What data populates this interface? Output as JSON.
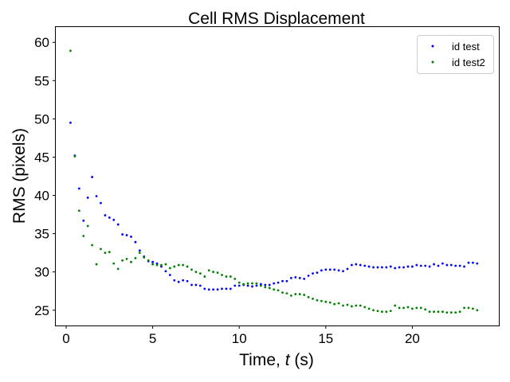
{
  "chart_data": {
    "type": "scatter",
    "title": "Cell RMS Displacement",
    "xlabel": {
      "prefix": "Time, ",
      "var": "t",
      "suffix": " (s)"
    },
    "ylabel": "RMS (pixels)",
    "xlim": [
      -0.6,
      25.0
    ],
    "ylim": [
      23.0,
      62.0
    ],
    "xticks": [
      0,
      5,
      10,
      15,
      20
    ],
    "yticks": [
      25,
      30,
      35,
      40,
      45,
      50,
      55,
      60
    ],
    "grid": false,
    "legend_position": "top-right",
    "series": [
      {
        "name": "id test",
        "color": "#0000ff",
        "points": [
          [
            0.25,
            49.5
          ],
          [
            0.5,
            45.2
          ],
          [
            0.75,
            40.9
          ],
          [
            1.0,
            36.7
          ],
          [
            1.25,
            39.7
          ],
          [
            1.5,
            42.4
          ],
          [
            1.75,
            39.9
          ],
          [
            2.0,
            39.0
          ],
          [
            2.25,
            37.4
          ],
          [
            2.5,
            37.1
          ],
          [
            2.75,
            36.8
          ],
          [
            3.0,
            36.2
          ],
          [
            3.25,
            34.9
          ],
          [
            3.5,
            34.8
          ],
          [
            3.75,
            34.6
          ],
          [
            4.0,
            33.9
          ],
          [
            4.25,
            32.8
          ],
          [
            4.5,
            32.0
          ],
          [
            4.75,
            31.4
          ],
          [
            5.0,
            31.3
          ],
          [
            5.25,
            31.1
          ],
          [
            5.5,
            30.7
          ],
          [
            5.75,
            30.1
          ],
          [
            6.0,
            29.6
          ],
          [
            6.25,
            28.9
          ],
          [
            6.5,
            28.7
          ],
          [
            6.75,
            28.9
          ],
          [
            7.0,
            28.8
          ],
          [
            7.25,
            28.3
          ],
          [
            7.5,
            28.3
          ],
          [
            7.75,
            28.2
          ],
          [
            8.0,
            27.8
          ],
          [
            8.25,
            27.7
          ],
          [
            8.5,
            27.7
          ],
          [
            8.75,
            27.7
          ],
          [
            9.0,
            27.8
          ],
          [
            9.25,
            27.8
          ],
          [
            9.5,
            27.8
          ],
          [
            9.75,
            28.2
          ],
          [
            10.0,
            28.2
          ],
          [
            10.25,
            28.3
          ],
          [
            10.5,
            28.2
          ],
          [
            10.75,
            28.1
          ],
          [
            11.0,
            28.2
          ],
          [
            11.25,
            28.4
          ],
          [
            11.5,
            28.3
          ],
          [
            11.75,
            28.3
          ],
          [
            12.0,
            28.5
          ],
          [
            12.25,
            28.6
          ],
          [
            12.5,
            28.8
          ],
          [
            12.75,
            28.8
          ],
          [
            13.0,
            29.2
          ],
          [
            13.25,
            29.3
          ],
          [
            13.5,
            29.2
          ],
          [
            13.75,
            29.1
          ],
          [
            14.0,
            29.5
          ],
          [
            14.25,
            29.8
          ],
          [
            14.5,
            29.9
          ],
          [
            14.75,
            30.2
          ],
          [
            15.0,
            30.3
          ],
          [
            15.25,
            30.3
          ],
          [
            15.5,
            30.3
          ],
          [
            15.75,
            30.2
          ],
          [
            16.0,
            30.1
          ],
          [
            16.25,
            30.4
          ],
          [
            16.5,
            30.9
          ],
          [
            16.75,
            31.0
          ],
          [
            17.0,
            30.9
          ],
          [
            17.25,
            30.8
          ],
          [
            17.5,
            30.7
          ],
          [
            17.75,
            30.6
          ],
          [
            18.0,
            30.6
          ],
          [
            18.25,
            30.6
          ],
          [
            18.5,
            30.6
          ],
          [
            18.75,
            30.7
          ],
          [
            19.0,
            30.5
          ],
          [
            19.25,
            30.6
          ],
          [
            19.5,
            30.6
          ],
          [
            19.75,
            30.7
          ],
          [
            20.0,
            30.7
          ],
          [
            20.25,
            30.9
          ],
          [
            20.5,
            30.8
          ],
          [
            20.75,
            30.8
          ],
          [
            21.0,
            30.7
          ],
          [
            21.25,
            31.0
          ],
          [
            21.5,
            30.8
          ],
          [
            21.75,
            31.1
          ],
          [
            22.0,
            30.9
          ],
          [
            22.25,
            30.9
          ],
          [
            22.5,
            30.8
          ],
          [
            22.75,
            30.8
          ],
          [
            23.0,
            30.7
          ],
          [
            23.25,
            31.2
          ],
          [
            23.5,
            31.2
          ],
          [
            23.75,
            31.1
          ]
        ]
      },
      {
        "name": "id test2",
        "color": "#008000",
        "points": [
          [
            0.25,
            58.9
          ],
          [
            0.5,
            45.1
          ],
          [
            0.75,
            38.0
          ],
          [
            1.0,
            34.7
          ],
          [
            1.25,
            36.0
          ],
          [
            1.5,
            33.5
          ],
          [
            1.75,
            31.0
          ],
          [
            2.0,
            33.0
          ],
          [
            2.25,
            32.5
          ],
          [
            2.5,
            32.6
          ],
          [
            2.75,
            31.1
          ],
          [
            3.0,
            30.4
          ],
          [
            3.25,
            31.5
          ],
          [
            3.5,
            31.7
          ],
          [
            3.75,
            31.3
          ],
          [
            4.0,
            31.8
          ],
          [
            4.25,
            32.5
          ],
          [
            4.5,
            31.9
          ],
          [
            4.75,
            31.5
          ],
          [
            5.0,
            31.0
          ],
          [
            5.25,
            30.9
          ],
          [
            5.5,
            30.9
          ],
          [
            5.75,
            31.0
          ],
          [
            6.0,
            30.5
          ],
          [
            6.25,
            30.7
          ],
          [
            6.5,
            30.9
          ],
          [
            6.75,
            30.9
          ],
          [
            7.0,
            30.7
          ],
          [
            7.25,
            30.3
          ],
          [
            7.5,
            30.0
          ],
          [
            7.75,
            29.8
          ],
          [
            8.0,
            29.4
          ],
          [
            8.25,
            30.2
          ],
          [
            8.5,
            30.0
          ],
          [
            8.75,
            29.9
          ],
          [
            9.0,
            29.6
          ],
          [
            9.25,
            29.4
          ],
          [
            9.5,
            29.4
          ],
          [
            9.75,
            29.1
          ],
          [
            10.0,
            28.6
          ],
          [
            10.25,
            28.4
          ],
          [
            10.5,
            28.5
          ],
          [
            10.75,
            28.5
          ],
          [
            11.0,
            28.5
          ],
          [
            11.25,
            28.2
          ],
          [
            11.5,
            28.0
          ],
          [
            11.75,
            27.9
          ],
          [
            12.0,
            27.7
          ],
          [
            12.25,
            27.6
          ],
          [
            12.5,
            27.3
          ],
          [
            12.75,
            27.2
          ],
          [
            13.0,
            26.9
          ],
          [
            13.25,
            27.1
          ],
          [
            13.5,
            27.1
          ],
          [
            13.75,
            27.0
          ],
          [
            14.0,
            26.7
          ],
          [
            14.25,
            26.5
          ],
          [
            14.5,
            26.3
          ],
          [
            14.75,
            26.2
          ],
          [
            15.0,
            26.1
          ],
          [
            15.25,
            26.0
          ],
          [
            15.5,
            25.8
          ],
          [
            15.75,
            25.9
          ],
          [
            16.0,
            25.6
          ],
          [
            16.25,
            25.7
          ],
          [
            16.5,
            25.5
          ],
          [
            16.75,
            25.6
          ],
          [
            17.0,
            25.6
          ],
          [
            17.25,
            25.4
          ],
          [
            17.5,
            25.2
          ],
          [
            17.75,
            25.0
          ],
          [
            18.0,
            24.9
          ],
          [
            18.25,
            24.8
          ],
          [
            18.5,
            24.8
          ],
          [
            18.75,
            24.9
          ],
          [
            19.0,
            25.6
          ],
          [
            19.25,
            25.3
          ],
          [
            19.5,
            25.3
          ],
          [
            19.75,
            25.4
          ],
          [
            20.0,
            25.2
          ],
          [
            20.25,
            25.3
          ],
          [
            20.5,
            25.3
          ],
          [
            20.75,
            25.1
          ],
          [
            21.0,
            24.8
          ],
          [
            21.25,
            24.8
          ],
          [
            21.5,
            24.8
          ],
          [
            21.75,
            24.8
          ],
          [
            22.0,
            24.7
          ],
          [
            22.25,
            24.7
          ],
          [
            22.5,
            24.7
          ],
          [
            22.75,
            24.8
          ],
          [
            23.0,
            25.3
          ],
          [
            23.25,
            25.3
          ],
          [
            23.5,
            25.2
          ],
          [
            23.75,
            25.0
          ]
        ]
      }
    ]
  }
}
